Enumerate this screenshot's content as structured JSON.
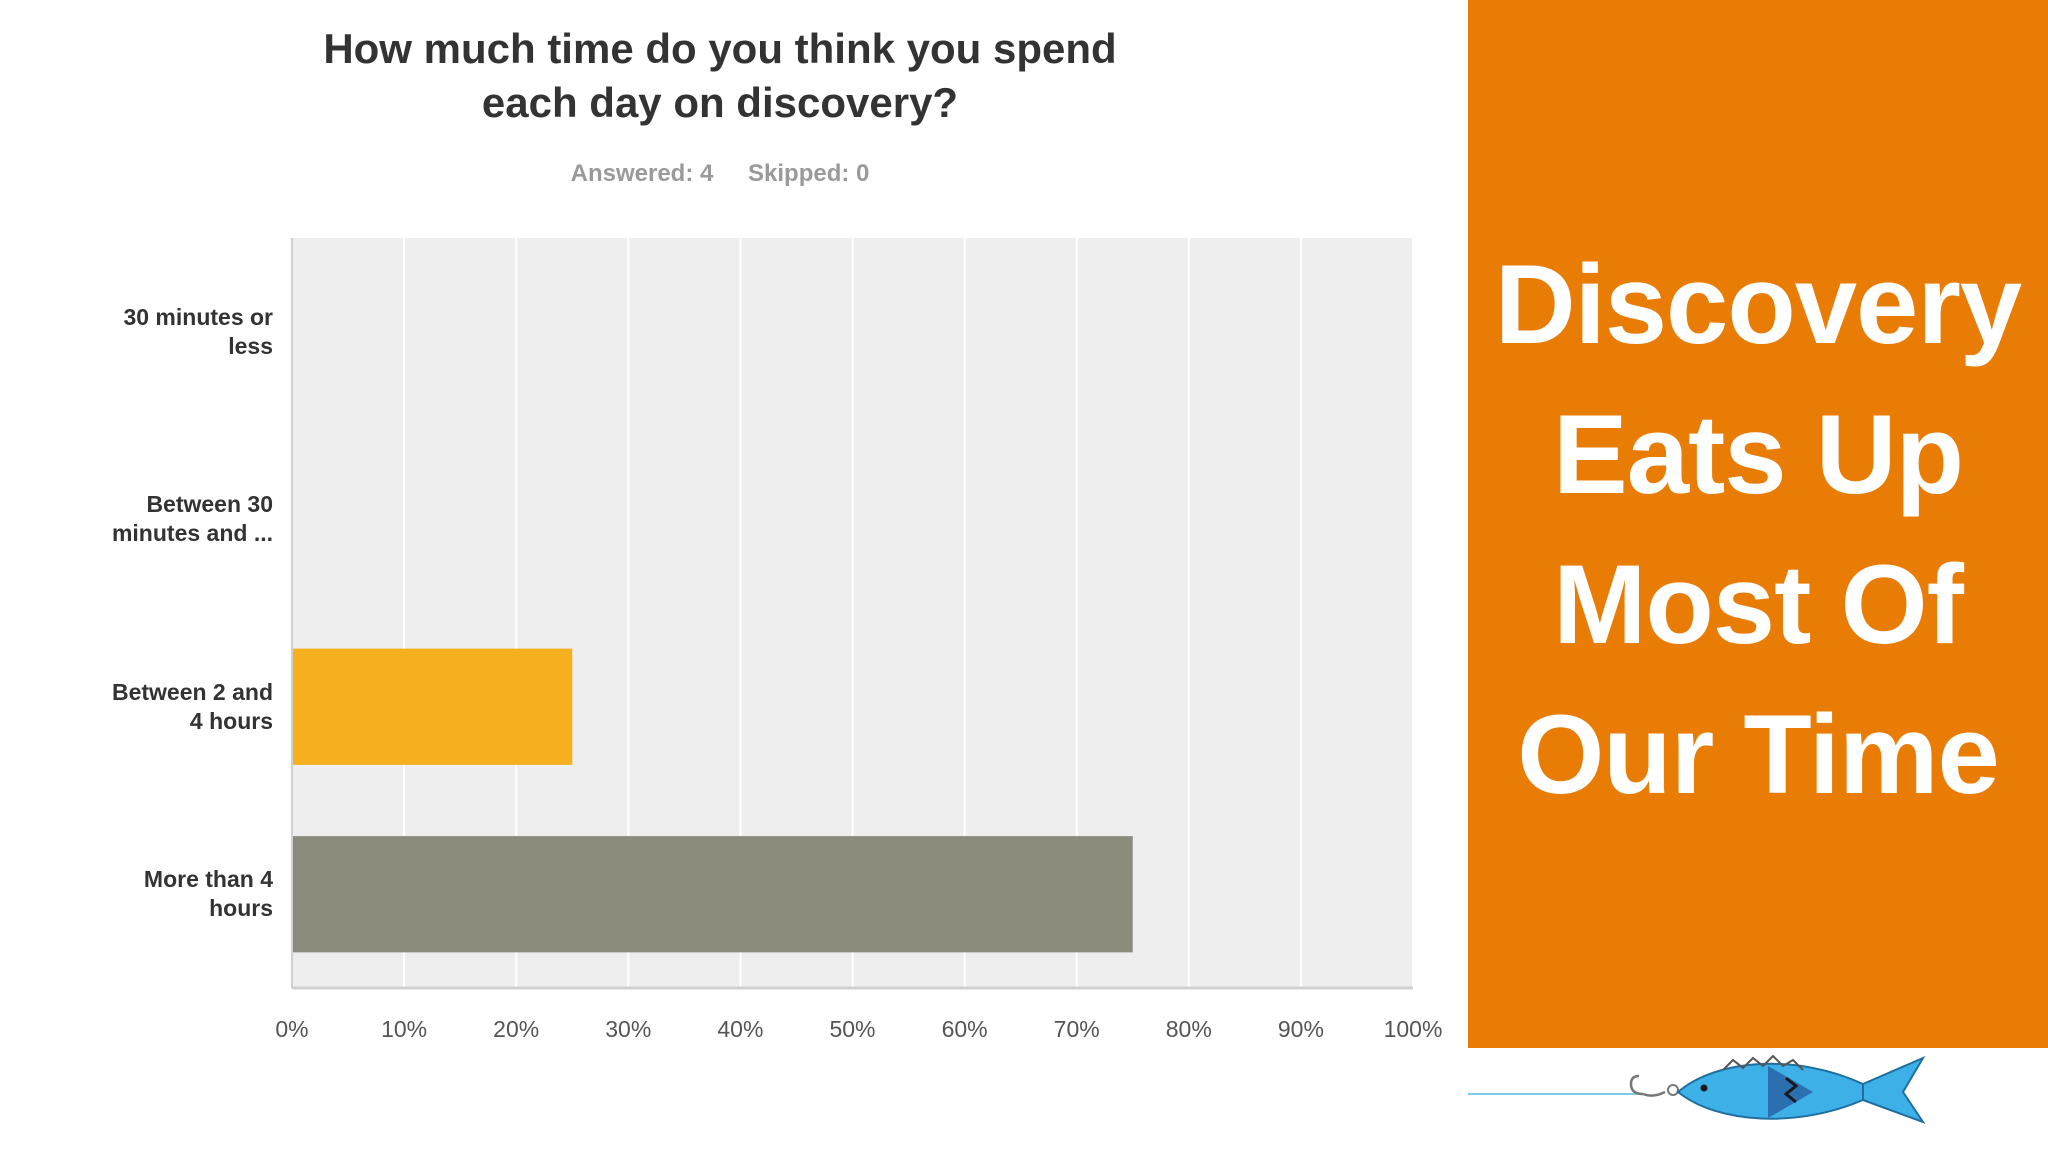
{
  "chart_data": {
    "type": "bar",
    "orientation": "horizontal",
    "title": "How much time do you think you spend each day on discovery?",
    "title_lines": [
      "How much time do you think you spend",
      "each day on discovery?"
    ],
    "answered": "Answered: 4",
    "skipped": "Skipped: 0",
    "categories": [
      "30 minutes or less",
      "Between 30 minutes and ...",
      "Between 2 and 4 hours",
      "More than 4 hours"
    ],
    "category_lines": [
      [
        "30 minutes or",
        "less"
      ],
      [
        "Between 30",
        "minutes and ..."
      ],
      [
        "Between 2 and",
        "4 hours"
      ],
      [
        "More than 4",
        "hours"
      ]
    ],
    "values": [
      0,
      0,
      25,
      75
    ],
    "bar_colors": [
      "#f5af1f",
      "#f5af1f",
      "#f5af1f",
      "#8a8b7a"
    ],
    "xlim": [
      0,
      100
    ],
    "ticks": [
      "0%",
      "10%",
      "20%",
      "30%",
      "40%",
      "50%",
      "60%",
      "70%",
      "80%",
      "90%",
      "100%"
    ],
    "grid": true,
    "plot_background": "#efeeef"
  },
  "banner": {
    "lines": [
      "Discovery",
      "Eats Up",
      "Most Of",
      "Our Time"
    ],
    "background": "#e87c05",
    "text_color": "#ffffff"
  },
  "logo": {
    "icon": "fish-on-hook-icon"
  }
}
